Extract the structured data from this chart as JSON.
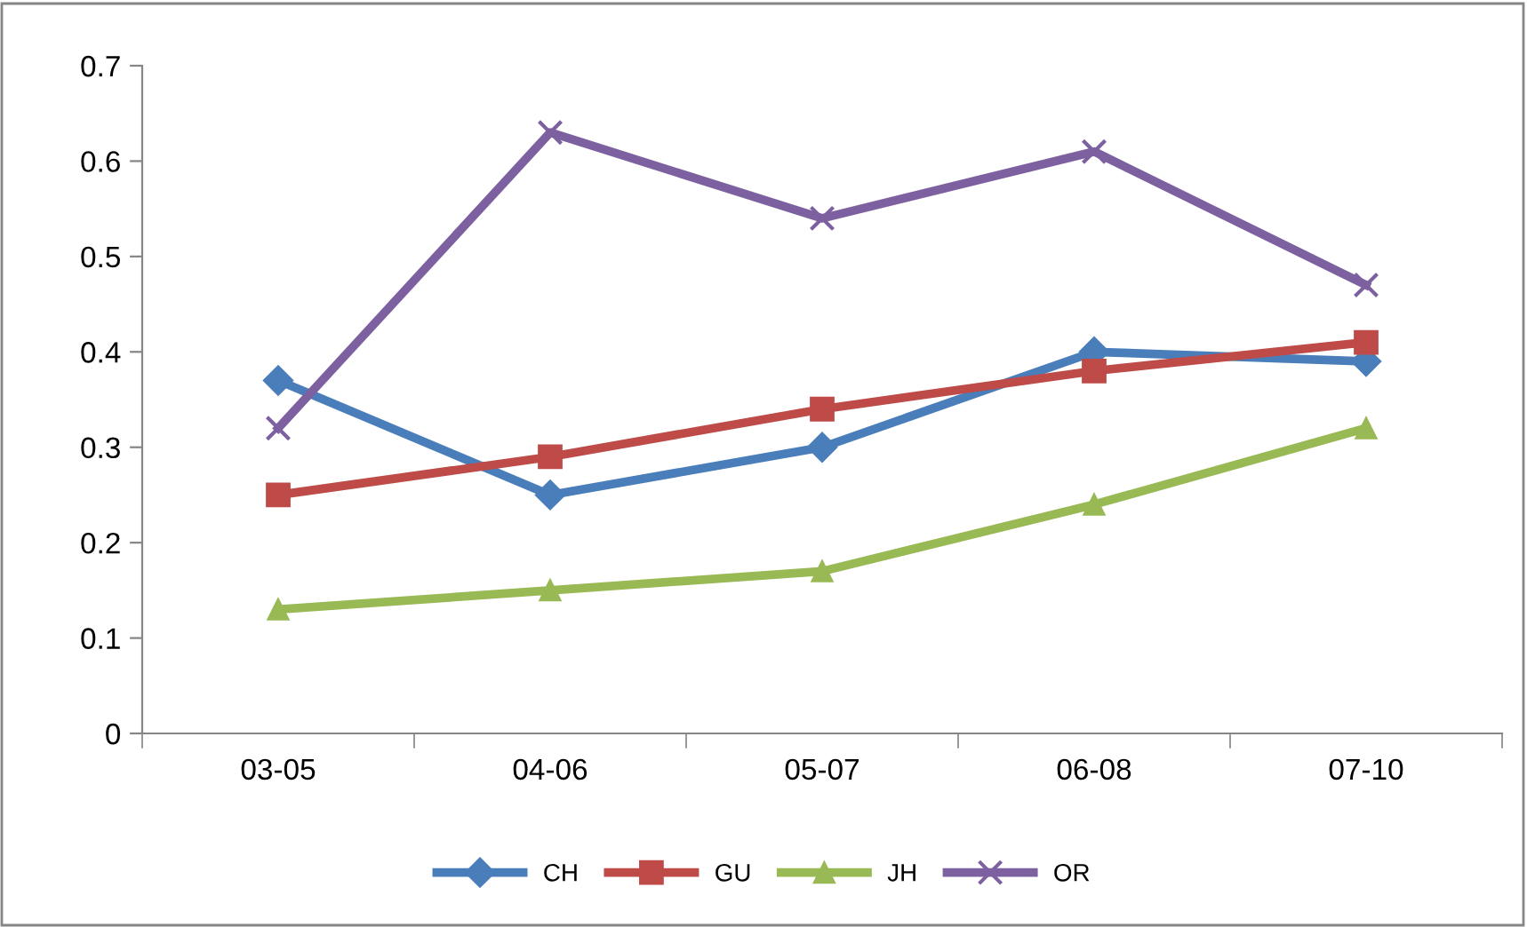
{
  "chart_data": {
    "type": "line",
    "categories": [
      "03-05",
      "04-06",
      "05-07",
      "06-08",
      "07-10"
    ],
    "series": [
      {
        "name": "CH",
        "color": "#4a7ebb",
        "marker": "diamond",
        "values": [
          0.37,
          0.25,
          0.3,
          0.4,
          0.39
        ]
      },
      {
        "name": "GU",
        "color": "#be4b48",
        "marker": "square",
        "values": [
          0.25,
          0.29,
          0.34,
          0.38,
          0.41
        ]
      },
      {
        "name": "JH",
        "color": "#98b954",
        "marker": "triangle",
        "values": [
          0.13,
          0.15,
          0.17,
          0.24,
          0.32
        ]
      },
      {
        "name": "OR",
        "color": "#7d60a0",
        "marker": "cross",
        "values": [
          0.32,
          0.63,
          0.54,
          0.61,
          0.47
        ]
      }
    ],
    "ylim": [
      0,
      0.7
    ],
    "yticks": [
      0,
      0.1,
      0.2,
      0.3,
      0.4,
      0.5,
      0.6,
      0.7
    ],
    "grid": false,
    "legend": "bottom",
    "line_style": "solid"
  }
}
